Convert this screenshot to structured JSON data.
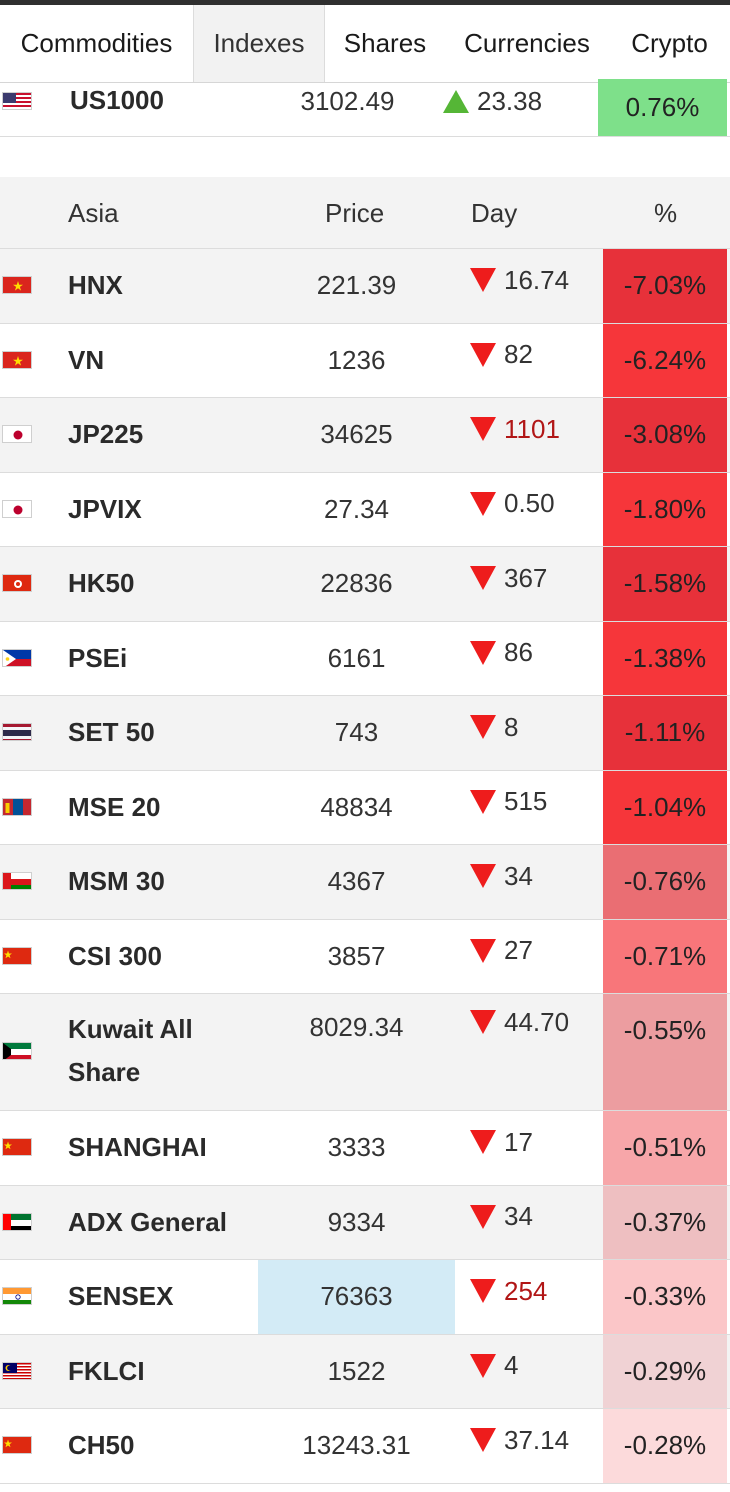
{
  "tabs": [
    {
      "label": "Commodities",
      "active": false
    },
    {
      "label": "Indexes",
      "active": true
    },
    {
      "label": "Shares",
      "active": false
    },
    {
      "label": "Currencies",
      "active": false
    },
    {
      "label": "Crypto",
      "active": false
    }
  ],
  "us_row": {
    "name": "US1000",
    "price": "3102.49",
    "day": "23.38",
    "direction": "up",
    "pct": "0.76%",
    "pct_color": "#7ee08a",
    "flag": "us"
  },
  "asia": {
    "headers": {
      "region": "Asia",
      "price": "Price",
      "day": "Day",
      "pct": "%"
    },
    "rows": [
      {
        "name": "HNX",
        "price": "221.39",
        "day": "16.74",
        "pct": "-7.03%",
        "pct_color": "#e7313a",
        "flag": "vn",
        "day_red_text": false,
        "price_highlight": false
      },
      {
        "name": "VN",
        "price": "1236",
        "day": "82",
        "pct": "-6.24%",
        "pct_color": "#f6363a",
        "flag": "vn",
        "day_red_text": false,
        "price_highlight": false
      },
      {
        "name": "JP225",
        "price": "34625",
        "day": "1101",
        "pct": "-3.08%",
        "pct_color": "#e7313a",
        "flag": "jp",
        "day_red_text": true,
        "price_highlight": false
      },
      {
        "name": "JPVIX",
        "price": "27.34",
        "day": "0.50",
        "pct": "-1.80%",
        "pct_color": "#f6363a",
        "flag": "jp",
        "day_red_text": false,
        "price_highlight": false
      },
      {
        "name": "HK50",
        "price": "22836",
        "day": "367",
        "pct": "-1.58%",
        "pct_color": "#e7313a",
        "flag": "hk",
        "day_red_text": false,
        "price_highlight": false
      },
      {
        "name": "PSEi",
        "price": "6161",
        "day": "86",
        "pct": "-1.38%",
        "pct_color": "#f6363a",
        "flag": "ph",
        "day_red_text": false,
        "price_highlight": false
      },
      {
        "name": "SET 50",
        "price": "743",
        "day": "8",
        "pct": "-1.11%",
        "pct_color": "#e7313a",
        "flag": "th",
        "day_red_text": false,
        "price_highlight": false
      },
      {
        "name": "MSE 20",
        "price": "48834",
        "day": "515",
        "pct": "-1.04%",
        "pct_color": "#f6363a",
        "flag": "mn",
        "day_red_text": false,
        "price_highlight": false
      },
      {
        "name": "MSM 30",
        "price": "4367",
        "day": "34",
        "pct": "-0.76%",
        "pct_color": "#ea6e73",
        "flag": "om",
        "day_red_text": false,
        "price_highlight": false
      },
      {
        "name": "CSI 300",
        "price": "3857",
        "day": "27",
        "pct": "-0.71%",
        "pct_color": "#f8767a",
        "flag": "cn",
        "day_red_text": false,
        "price_highlight": false
      },
      {
        "name_lines": [
          "Kuwait All",
          "Share"
        ],
        "name": "Kuwait All Share",
        "price": "8029.34",
        "day": "44.70",
        "pct": "-0.55%",
        "pct_color": "#ec9da0",
        "flag": "kw",
        "day_red_text": false,
        "price_highlight": false,
        "tall": true
      },
      {
        "name": "SHANGHAI",
        "price": "3333",
        "day": "17",
        "pct": "-0.51%",
        "pct_color": "#f7a6a9",
        "flag": "cn",
        "day_red_text": false,
        "price_highlight": false
      },
      {
        "name": "ADX General",
        "price": "9334",
        "day": "34",
        "pct": "-0.37%",
        "pct_color": "#eebfc1",
        "flag": "ae",
        "day_red_text": false,
        "price_highlight": false
      },
      {
        "name": "SENSEX",
        "price": "76363",
        "day": "254",
        "pct": "-0.33%",
        "pct_color": "#fbc6c8",
        "flag": "in",
        "day_red_text": true,
        "price_highlight": true
      },
      {
        "name": "FKLCI",
        "price": "1522",
        "day": "4",
        "pct": "-0.29%",
        "pct_color": "#f0d2d4",
        "flag": "my",
        "day_red_text": false,
        "price_highlight": false
      },
      {
        "name": "CH50",
        "price": "13243.31",
        "day": "37.14",
        "pct": "-0.28%",
        "pct_color": "#fcdadb",
        "flag": "cn",
        "day_red_text": false,
        "price_highlight": false
      }
    ]
  }
}
